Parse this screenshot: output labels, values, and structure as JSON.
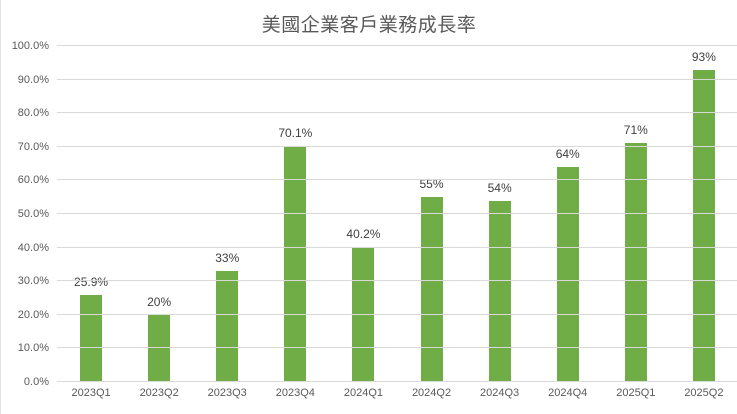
{
  "chart_data": {
    "type": "bar",
    "title": "美國企業客戶業務成長率",
    "categories": [
      "2023Q1",
      "2023Q2",
      "2023Q3",
      "2023Q4",
      "2024Q1",
      "2024Q2",
      "2024Q3",
      "2024Q4",
      "2025Q1",
      "2025Q2"
    ],
    "values": [
      25.9,
      20,
      33,
      70.1,
      40.2,
      55,
      54,
      64,
      71,
      93
    ],
    "value_labels": [
      "25.9%",
      "20%",
      "33%",
      "70.1%",
      "40.2%",
      "55%",
      "54%",
      "64%",
      "71%",
      "93%"
    ],
    "xlabel": "",
    "ylabel": "",
    "ylim": [
      0,
      100
    ],
    "ytick_step": 10,
    "ytick_labels": [
      "0.0%",
      "10.0%",
      "20.0%",
      "30.0%",
      "40.0%",
      "50.0%",
      "60.0%",
      "70.0%",
      "80.0%",
      "90.0%",
      "100.0%"
    ],
    "grid": true,
    "legend": "none",
    "colors": {
      "bar": "#70AD47",
      "gridline": "#D9D9D9",
      "title": "#595959",
      "axis_label": "#595959",
      "value_label": "#404040"
    }
  }
}
